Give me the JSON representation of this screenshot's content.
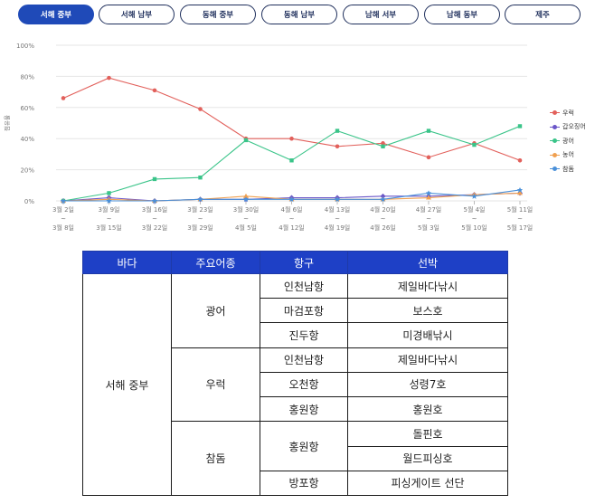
{
  "tabs": [
    {
      "label": "서해 중부",
      "active": true
    },
    {
      "label": "서해 남부",
      "active": false
    },
    {
      "label": "동해 중부",
      "active": false
    },
    {
      "label": "동해 남부",
      "active": false
    },
    {
      "label": "남해 서부",
      "active": false
    },
    {
      "label": "남해 동부",
      "active": false
    },
    {
      "label": "제주",
      "active": false
    }
  ],
  "chart_data": {
    "type": "line",
    "ylabel": "점유율",
    "ylim": [
      0,
      100
    ],
    "yticks": [
      "0%",
      "20%",
      "40%",
      "60%",
      "80%",
      "100%"
    ],
    "grid": true,
    "legend_position": "right",
    "x": [
      [
        "3월 2일",
        "~",
        "3월 8일"
      ],
      [
        "3월 9일",
        "~",
        "3월 15일"
      ],
      [
        "3월 16일",
        "~",
        "3월 22일"
      ],
      [
        "3월 23일",
        "~",
        "3월 29일"
      ],
      [
        "3월 30일",
        "~",
        "4월 5일"
      ],
      [
        "4월 6일",
        "~",
        "4월 12일"
      ],
      [
        "4월 13일",
        "~",
        "4월 19일"
      ],
      [
        "4월 20일",
        "~",
        "4월 26일"
      ],
      [
        "4월 27일",
        "~",
        "5월 3일"
      ],
      [
        "5월 4일",
        "~",
        "5월 10일"
      ],
      [
        "5월 11일",
        "~",
        "5월 17일"
      ]
    ],
    "series": [
      {
        "name": "우럭",
        "color": "#e2605b",
        "marker": "circle",
        "values": [
          66,
          79,
          71,
          59,
          40,
          40,
          35,
          37,
          28,
          37,
          26
        ]
      },
      {
        "name": "갑오징어",
        "color": "#6a55c8",
        "marker": "diamond",
        "values": [
          0,
          2,
          0,
          1,
          1,
          2,
          2,
          3,
          3,
          4,
          5
        ]
      },
      {
        "name": "광어",
        "color": "#3ac489",
        "marker": "square",
        "values": [
          0,
          5,
          14,
          15,
          39,
          26,
          45,
          35,
          45,
          36,
          48
        ]
      },
      {
        "name": "농어",
        "color": "#f0a050",
        "marker": "triangle",
        "values": [
          0,
          1,
          0,
          1,
          3,
          1,
          1,
          1,
          2,
          4,
          5
        ]
      },
      {
        "name": "참돔",
        "color": "#4a90d9",
        "marker": "star",
        "values": [
          0,
          0,
          0,
          1,
          1,
          1,
          1,
          1,
          5,
          3,
          7
        ]
      }
    ]
  },
  "table": {
    "headers": [
      "바다",
      "주요어종",
      "항구",
      "선박"
    ],
    "sea": "서해 중부",
    "groups": [
      {
        "species": "광어"
      },
      {
        "species": "우럭"
      },
      {
        "species": "참돔"
      }
    ],
    "rows": [
      {
        "port": "인천남항",
        "boat": "제일바다낚시"
      },
      {
        "port": "마검포항",
        "boat": "보스호"
      },
      {
        "port": "진두항",
        "boat": "미경배낚시"
      },
      {
        "port": "인천남항",
        "boat": "제일바다낚시"
      },
      {
        "port": "오천항",
        "boat": "성령7호"
      },
      {
        "port": "홍원항",
        "boat": "홍원호"
      },
      {
        "port": "홍원항",
        "boat": "돌핀호"
      },
      {
        "port": "",
        "boat": "월드피싱호"
      },
      {
        "port": "방포항",
        "boat": "피싱게이트 선단"
      }
    ]
  }
}
